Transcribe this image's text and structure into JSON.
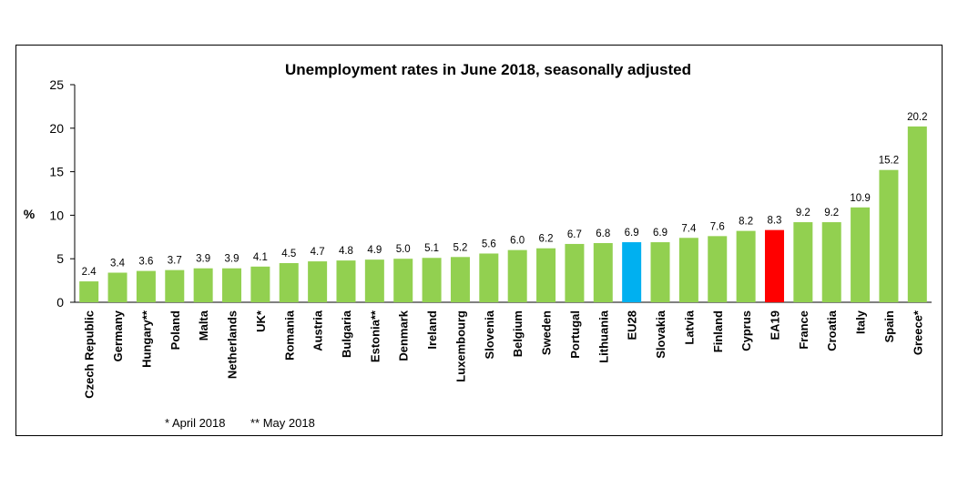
{
  "chart_data": {
    "type": "bar",
    "title": "Unemployment rates in June 2018, seasonally adjusted",
    "xlabel": "",
    "ylabel": "%",
    "ylim": [
      0,
      25
    ],
    "yticks": [
      0,
      5,
      10,
      15,
      20,
      25
    ],
    "grid": false,
    "categories": [
      "Czech Republic",
      "Germany",
      "Hungary**",
      "Poland",
      "Malta",
      "Netherlands",
      "UK*",
      "Romania",
      "Austria",
      "Bulgaria",
      "Estonia**",
      "Denmark",
      "Ireland",
      "Luxembourg",
      "Slovenia",
      "Belgium",
      "Sweden",
      "Portugal",
      "Lithuania",
      "EU28",
      "Slovakia",
      "Latvia",
      "Finland",
      "Cyprus",
      "EA19",
      "France",
      "Croatia",
      "Italy",
      "Spain",
      "Greece*"
    ],
    "values": [
      2.4,
      3.4,
      3.6,
      3.7,
      3.9,
      3.9,
      4.1,
      4.5,
      4.7,
      4.8,
      4.9,
      5.0,
      5.1,
      5.2,
      5.6,
      6.0,
      6.2,
      6.7,
      6.8,
      6.9,
      6.9,
      7.4,
      7.6,
      8.2,
      8.3,
      9.2,
      9.2,
      10.9,
      15.2,
      20.2
    ],
    "data_labels": [
      "2.4",
      "3.4",
      "3.6",
      "3.7",
      "3.9",
      "3.9",
      "4.1",
      "4.5",
      "4.7",
      "4.8",
      "4.9",
      "5.0",
      "5.1",
      "5.2",
      "5.6",
      "6.0",
      "6.2",
      "6.7",
      "6.8",
      "6.9",
      "6.9",
      "7.4",
      "7.6",
      "8.2",
      "8.3",
      "9.2",
      "9.2",
      "10.9",
      "15.2",
      "20.2"
    ],
    "colors": {
      "default": "#92d050",
      "highlights": {
        "EU28": "#00b0f0",
        "EA19": "#ff0000"
      },
      "axis": "#000000"
    },
    "footnotes": [
      "* April 2018",
      "** May 2018"
    ]
  }
}
